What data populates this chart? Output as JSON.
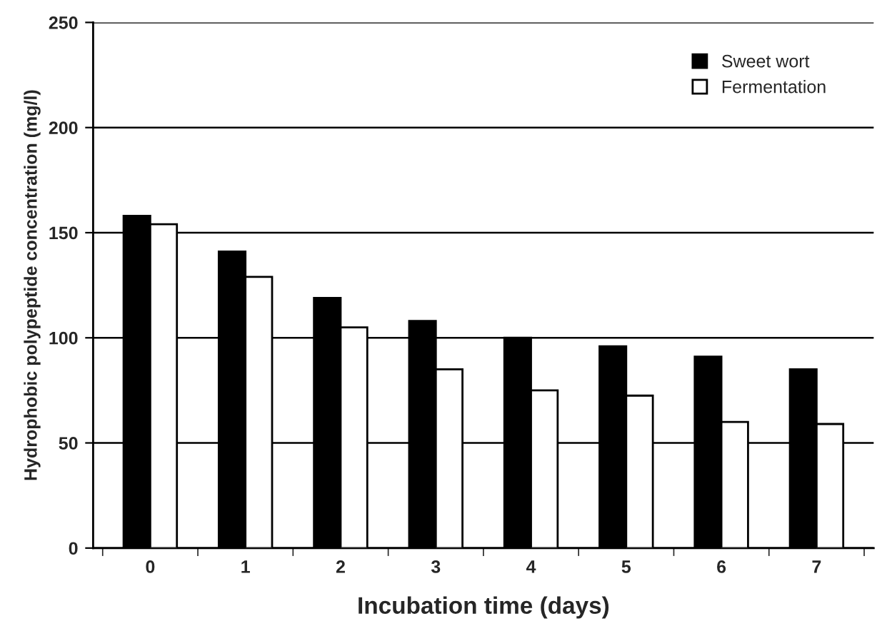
{
  "chart_data": {
    "type": "bar",
    "xlabel": "Incubation time (days)",
    "ylabel": "Hydrophobic polypeptide concentration (mg/l)",
    "categories": [
      "0",
      "1",
      "2",
      "3",
      "4",
      "5",
      "6",
      "7"
    ],
    "series": [
      {
        "name": "Sweet wort",
        "color": "#000000",
        "values": [
          158,
          141,
          119,
          108,
          100,
          96,
          91,
          85
        ]
      },
      {
        "name": "Fermentation",
        "color": "#ffffff",
        "values": [
          154,
          129,
          105,
          85,
          75,
          72.5,
          60,
          59
        ]
      }
    ],
    "ylim": [
      0,
      250
    ],
    "yticks": [
      0,
      50,
      100,
      150,
      200,
      250
    ],
    "grid": "y",
    "legend": "top right"
  }
}
